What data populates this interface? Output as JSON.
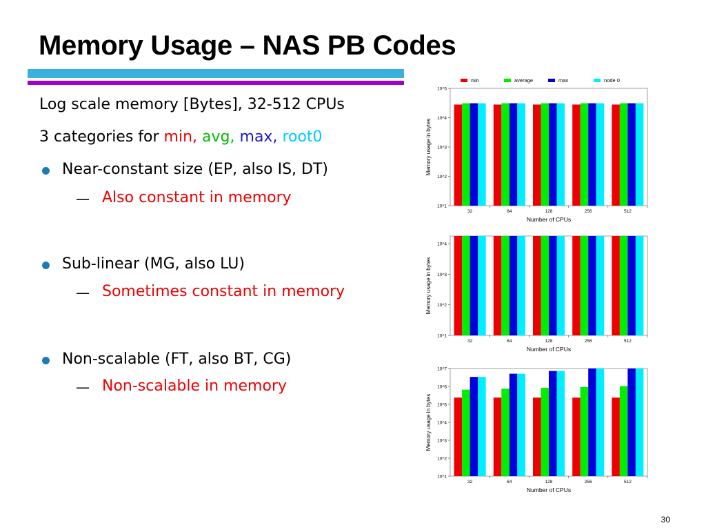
{
  "slide": {
    "title": "Memory Usage – NAS PB Codes",
    "line1": "Log scale memory [Bytes], 32-512 CPUs",
    "line2_prefix": "3 categories for ",
    "cat_min": "min",
    "cat_avg": "avg",
    "cat_max": "max",
    "cat_root": "root0",
    "sep": ",",
    "bullets": [
      {
        "text": "Near-constant size (EP, also IS, DT)",
        "sub": "Also constant in memory"
      },
      {
        "text": "Sub-linear (MG, also LU)",
        "sub": "Sometimes constant in memory"
      },
      {
        "text": "Non-scalable (FT, also BT, CG)",
        "sub": "Non-scalable in memory"
      }
    ],
    "dash": "—",
    "page_number": "30"
  },
  "colors": {
    "min": "#ee0000",
    "average": "#00ee00",
    "max": "#0000dd",
    "node0": "#00eeff",
    "title_rule_blue": "#3ab0dd",
    "title_rule_purple": "#a000c8",
    "bullet": "#1e7ab4"
  },
  "chart_data": [
    {
      "type": "bar",
      "log_scale": true,
      "categories": [
        "32",
        "64",
        "128",
        "256",
        "512"
      ],
      "ylim_exp": [
        1,
        5
      ],
      "yticks": [
        "10^1",
        "10^2",
        "10^3",
        "10^4",
        "10^5"
      ],
      "ylabel": "Memory usage in bytes",
      "xlabel": "Number of CPUs",
      "legend": [
        "min",
        "average",
        "max",
        "node 0"
      ],
      "legend_position": "top",
      "series": [
        {
          "name": "min",
          "values": [
            28000,
            28000,
            28000,
            28000,
            28000
          ]
        },
        {
          "name": "average",
          "values": [
            31000,
            31000,
            31000,
            31000,
            31000
          ]
        },
        {
          "name": "max",
          "values": [
            31000,
            31000,
            31000,
            31000,
            31000
          ]
        },
        {
          "name": "node 0",
          "values": [
            31000,
            31000,
            31000,
            31000,
            31000
          ]
        }
      ]
    },
    {
      "type": "bar",
      "log_scale": true,
      "categories": [
        "32",
        "64",
        "128",
        "256",
        "512"
      ],
      "ylim_exp": [
        1,
        4.25
      ],
      "yticks": [
        "10^1",
        "10^2",
        "10^3",
        "10^4"
      ],
      "ylabel": "Memory usage in bytes",
      "xlabel": "Number of CPUs",
      "legend": [],
      "series": [
        {
          "name": "min",
          "values": [
            17800,
            17800,
            17800,
            17800,
            17800
          ]
        },
        {
          "name": "average",
          "values": [
            17800,
            17800,
            17800,
            17800,
            17800
          ]
        },
        {
          "name": "max",
          "values": [
            17800,
            17800,
            17800,
            17800,
            17800
          ]
        },
        {
          "name": "node 0",
          "values": [
            17800,
            17800,
            17800,
            17800,
            17800
          ]
        }
      ]
    },
    {
      "type": "bar",
      "log_scale": true,
      "categories": [
        "32",
        "64",
        "128",
        "256",
        "512"
      ],
      "ylim_exp": [
        1,
        7
      ],
      "yticks": [
        "10^1",
        "10^2",
        "10^3",
        "10^4",
        "10^5",
        "10^6",
        "10^7"
      ],
      "ylabel": "Memory usage in bytes",
      "xlabel": "Number of CPUs",
      "legend": [],
      "series": [
        {
          "name": "min",
          "values": [
            240000,
            240000,
            240000,
            240000,
            240000
          ]
        },
        {
          "name": "average",
          "values": [
            660000,
            750000,
            830000,
            920000,
            1050000
          ]
        },
        {
          "name": "max",
          "values": [
            3400000,
            5100000,
            7300000,
            10000000,
            10000000
          ]
        },
        {
          "name": "node 0",
          "values": [
            3400000,
            5100000,
            7300000,
            10000000,
            10000000
          ]
        }
      ]
    }
  ]
}
